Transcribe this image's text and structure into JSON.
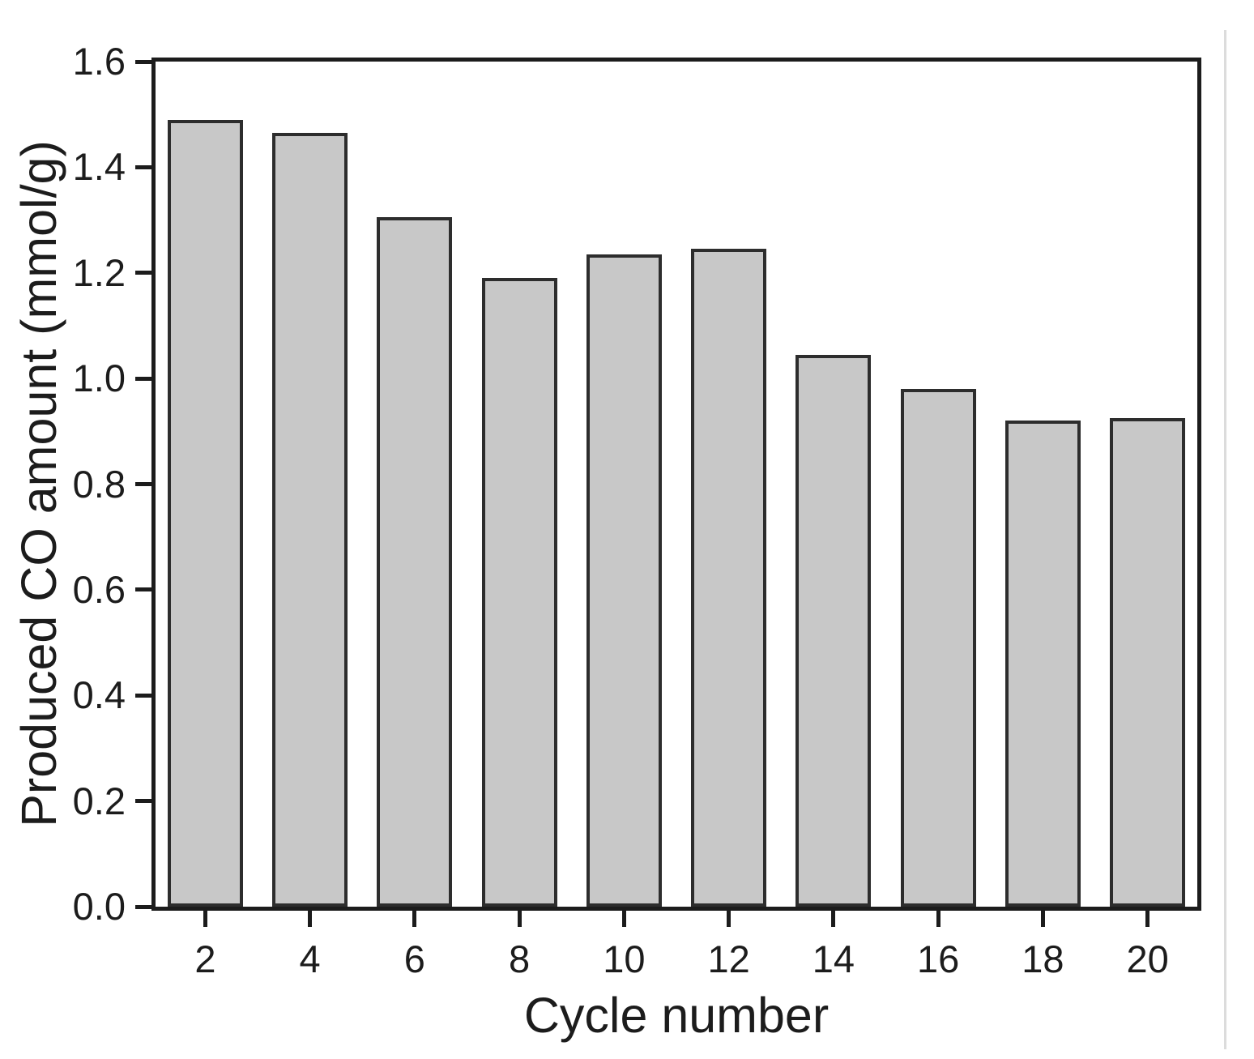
{
  "figure": {
    "background_color": "#ffffff",
    "page_edge_color": "#dcdcdc"
  },
  "chart_data": {
    "type": "bar",
    "title": "",
    "xlabel": "Cycle number",
    "ylabel": "Produced CO amount (mmol/g)",
    "categories": [
      2,
      4,
      6,
      8,
      10,
      12,
      14,
      16,
      18,
      20
    ],
    "values": [
      1.49,
      1.465,
      1.305,
      1.19,
      1.235,
      1.245,
      1.045,
      0.98,
      0.92,
      0.925
    ],
    "x_tick_labels": [
      "2",
      "4",
      "6",
      "8",
      "10",
      "12",
      "14",
      "16",
      "18",
      "20"
    ],
    "y_tick_labels": [
      "0.0",
      "0.2",
      "0.4",
      "0.6",
      "0.8",
      "1.0",
      "1.2",
      "1.4",
      "1.6"
    ],
    "xlim": [
      1.05,
      20.95
    ],
    "ylim": [
      0,
      1.6
    ],
    "grid": false,
    "legend": "none",
    "bar_fill_color": "#c8c8c8",
    "bar_border_color": "#2d2d2d",
    "axis_color": "#1c1c1c",
    "text_color": "#1c1c1c"
  }
}
